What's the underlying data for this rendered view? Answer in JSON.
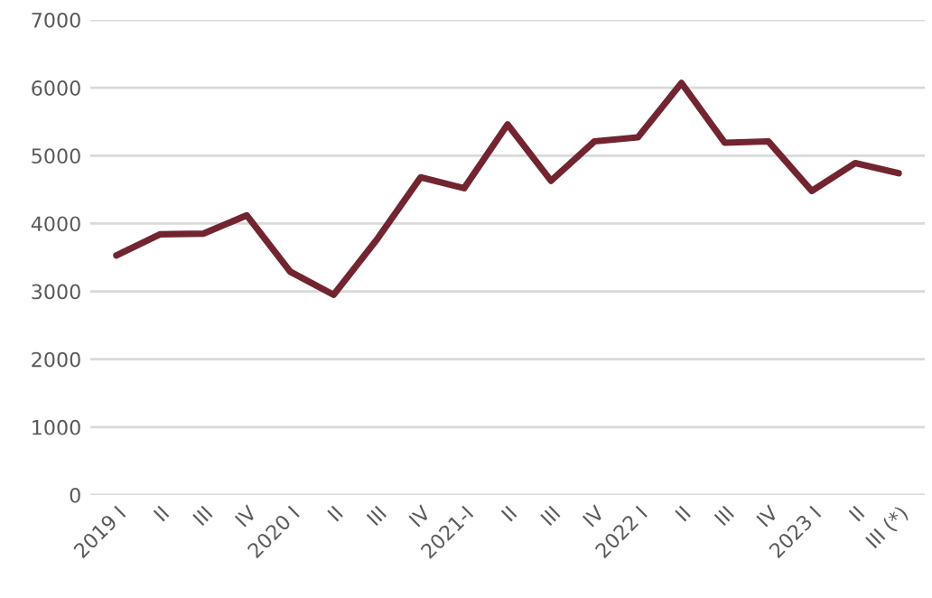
{
  "chart_data": {
    "type": "line",
    "categories": [
      "2019 I",
      "II",
      "III",
      "IV",
      "2020 I",
      "II",
      "III",
      "IV",
      "2021-I",
      "II",
      "III",
      "IV",
      "2022 I",
      "II",
      "III",
      "IV",
      "2023 I",
      "II",
      "III (*)"
    ],
    "series": [
      {
        "color": "#722530",
        "values": [
          3530,
          3840,
          3850,
          4120,
          3290,
          2950,
          3770,
          4680,
          4520,
          5460,
          4630,
          5210,
          5270,
          6070,
          5190,
          5210,
          4480,
          4890,
          4740
        ]
      }
    ],
    "ylim": [
      0,
      7000
    ],
    "yticks": [
      0,
      1000,
      2000,
      3000,
      4000,
      5000,
      6000,
      7000
    ],
    "grid": "y",
    "legend": false,
    "marker": "none",
    "line_style": "solid"
  }
}
